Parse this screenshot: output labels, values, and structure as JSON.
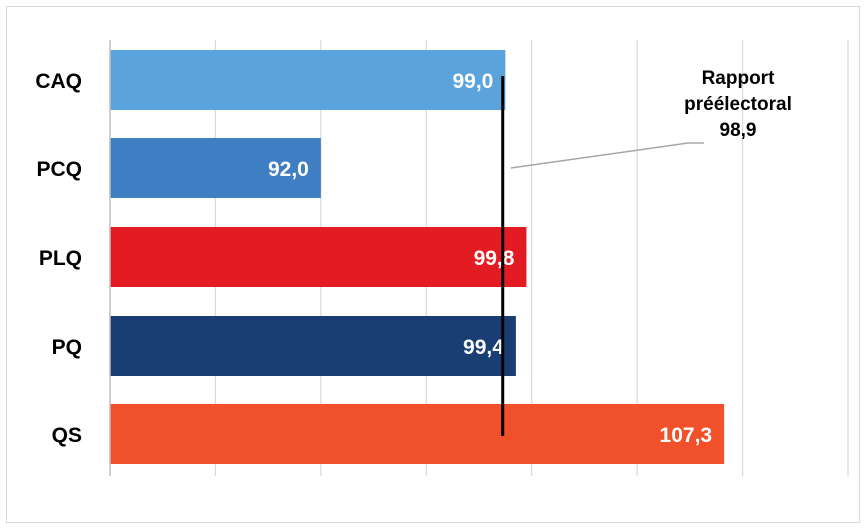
{
  "chart_data": {
    "type": "bar",
    "orientation": "horizontal",
    "categories": [
      "CAQ",
      "PCQ",
      "PLQ",
      "PQ",
      "QS"
    ],
    "values": [
      99.0,
      92.0,
      99.8,
      99.4,
      107.3
    ],
    "value_labels": [
      "99,0",
      "92,0",
      "99,8",
      "99,4",
      "107,3"
    ],
    "colors": [
      "#5ba3dc",
      "#3f7ec3",
      "#e31b23",
      "#1a3d73",
      "#f0502a"
    ],
    "xlim": [
      84,
      112
    ],
    "x_gridlines": [
      84,
      88,
      92,
      96,
      100,
      104,
      108,
      112
    ],
    "title": "",
    "xlabel": "",
    "ylabel": "",
    "grid": true,
    "legend": "none",
    "reference_line": {
      "value": 98.9,
      "label_lines": [
        "Rapport",
        "préélectoral",
        "98,9"
      ],
      "color": "#000000"
    }
  }
}
